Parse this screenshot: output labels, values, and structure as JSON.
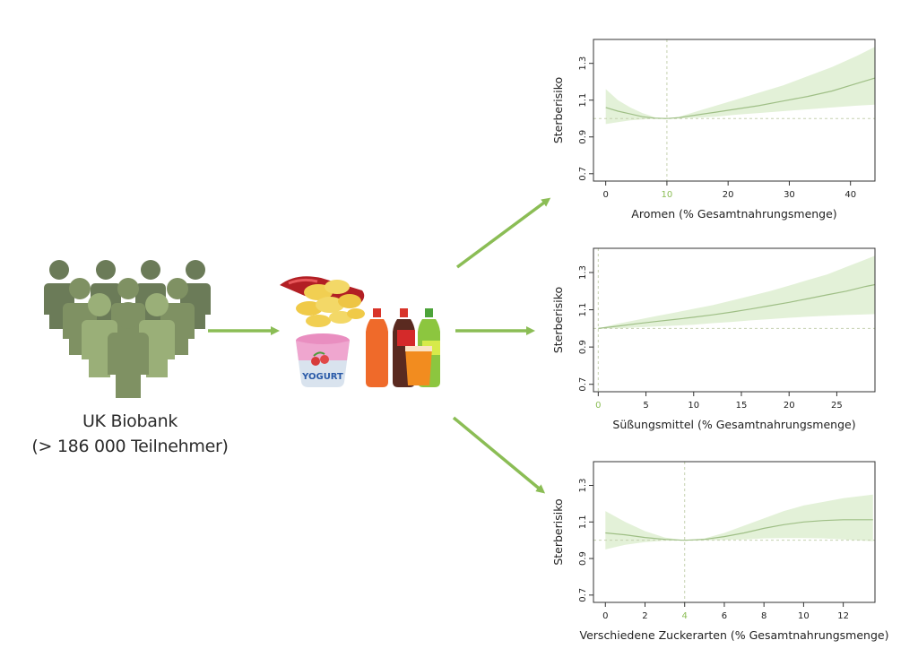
{
  "cohort": {
    "name": "UK Biobank",
    "size": "(> 186 000 Teilnehmer)"
  },
  "foods": {
    "items": [
      "chips-bag",
      "yogurt-cup",
      "soft-drink-bottles",
      "juice-glass"
    ],
    "yogurt_text": "YOGURT"
  },
  "colors": {
    "accent_green": "#8bbd55",
    "band_fill": "#e3f1d8",
    "curve": "#9fbf86",
    "reference": "#c5d1b0",
    "person_dark": "#6b7b58",
    "person_mid": "#7f9163",
    "person_light": "#9aaf78"
  },
  "chart_data": [
    {
      "type": "line",
      "title": "",
      "xlabel": "Aromen (% Gesamtnahrungsmenge)",
      "ylabel": "Sterberisiko",
      "xlim": [
        -2,
        44
      ],
      "ylim": [
        0.66,
        1.43
      ],
      "xticks": [
        "0",
        "10",
        "20",
        "30",
        "40"
      ],
      "xtick_values": [
        0,
        10,
        20,
        30,
        40
      ],
      "yticks": [
        "0.7",
        "0.9",
        "1.1",
        "1.3"
      ],
      "ytick_values": [
        0.7,
        0.9,
        1.1,
        1.3
      ],
      "reference_x": 10,
      "reference_x_label": "10",
      "reference_y": 1.0,
      "series": [
        {
          "x": [
            0,
            2,
            4,
            6,
            8,
            10,
            12,
            15,
            18,
            21,
            25,
            29,
            33,
            37,
            41,
            44
          ],
          "y": [
            1.06,
            1.04,
            1.025,
            1.01,
            1.002,
            1.0,
            1.005,
            1.02,
            1.035,
            1.05,
            1.07,
            1.095,
            1.12,
            1.15,
            1.19,
            1.22
          ],
          "lower": [
            0.97,
            0.98,
            0.99,
            0.995,
            0.999,
            1.0,
            1.0,
            1.005,
            1.01,
            1.02,
            1.03,
            1.04,
            1.05,
            1.06,
            1.07,
            1.075
          ],
          "upper": [
            1.16,
            1.1,
            1.06,
            1.03,
            1.007,
            1.0,
            1.01,
            1.04,
            1.07,
            1.1,
            1.14,
            1.18,
            1.23,
            1.28,
            1.34,
            1.39
          ]
        }
      ]
    },
    {
      "type": "line",
      "title": "",
      "xlabel": "Süßungsmittel (% Gesamtnahrungsmenge)",
      "ylabel": "Sterberisiko",
      "xlim": [
        -0.5,
        29
      ],
      "ylim": [
        0.66,
        1.43
      ],
      "xticks": [
        "0",
        "5",
        "10",
        "15",
        "20",
        "25"
      ],
      "xtick_values": [
        0,
        5,
        10,
        15,
        20,
        25
      ],
      "yticks": [
        "0.7",
        "0.9",
        "1.1",
        "1.3"
      ],
      "ytick_values": [
        0.7,
        0.9,
        1.1,
        1.3
      ],
      "reference_x": 0,
      "reference_x_label": "0",
      "reference_y": 1.0,
      "series": [
        {
          "x": [
            0,
            2,
            4,
            6,
            8,
            10,
            12,
            14,
            16,
            18,
            20,
            22,
            24,
            26,
            28,
            29
          ],
          "y": [
            1.0,
            1.012,
            1.025,
            1.037,
            1.048,
            1.06,
            1.073,
            1.088,
            1.104,
            1.122,
            1.14,
            1.16,
            1.18,
            1.2,
            1.225,
            1.235
          ],
          "lower": [
            1.0,
            1.0,
            1.005,
            1.01,
            1.015,
            1.02,
            1.028,
            1.035,
            1.043,
            1.05,
            1.057,
            1.063,
            1.068,
            1.072,
            1.075,
            1.077
          ],
          "upper": [
            1.0,
            1.025,
            1.045,
            1.065,
            1.085,
            1.105,
            1.125,
            1.15,
            1.175,
            1.2,
            1.23,
            1.26,
            1.29,
            1.33,
            1.37,
            1.39
          ]
        }
      ]
    },
    {
      "type": "line",
      "title": "",
      "xlabel": "Verschiedene Zuckerarten (% Gesamtnahrungsmenge)",
      "ylabel": "Sterberisiko",
      "xlim": [
        -0.6,
        13.6
      ],
      "ylim": [
        0.66,
        1.43
      ],
      "xticks": [
        "0",
        "2",
        "4",
        "6",
        "8",
        "10",
        "12"
      ],
      "xtick_values": [
        0,
        2,
        4,
        6,
        8,
        10,
        12
      ],
      "yticks": [
        "0.7",
        "0.9",
        "1.1",
        "1.3"
      ],
      "ytick_values": [
        0.7,
        0.9,
        1.1,
        1.3
      ],
      "reference_x": 4,
      "reference_x_label": "4",
      "reference_y": 1.0,
      "series": [
        {
          "x": [
            0,
            1,
            2,
            3,
            4,
            5,
            6,
            7,
            8,
            9,
            10,
            11,
            12,
            13.5
          ],
          "y": [
            1.04,
            1.03,
            1.015,
            1.005,
            1.0,
            1.005,
            1.02,
            1.04,
            1.065,
            1.085,
            1.1,
            1.108,
            1.112,
            1.112
          ],
          "lower": [
            0.95,
            0.975,
            0.99,
            0.998,
            1.0,
            1.0,
            1.002,
            1.005,
            1.01,
            1.012,
            1.012,
            1.01,
            1.005,
            0.995
          ],
          "upper": [
            1.16,
            1.1,
            1.05,
            1.015,
            1.0,
            1.01,
            1.04,
            1.08,
            1.12,
            1.16,
            1.19,
            1.21,
            1.23,
            1.25
          ]
        }
      ]
    }
  ]
}
